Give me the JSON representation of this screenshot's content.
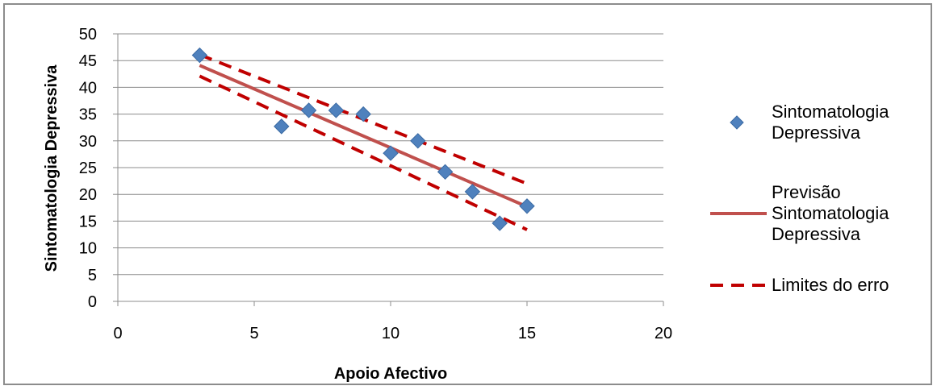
{
  "chart_data": {
    "type": "scatter",
    "title": "",
    "xlabel": "Apoio Afectivo",
    "ylabel": "Sintomatologia Depressiva",
    "xlim": [
      0,
      20
    ],
    "ylim": [
      0,
      50
    ],
    "xticks": [
      "0",
      "5",
      "10",
      "15",
      "20"
    ],
    "yticks": [
      "0",
      "5",
      "10",
      "15",
      "20",
      "25",
      "30",
      "35",
      "40",
      "45",
      "50"
    ],
    "grid": "horizontal",
    "legend_position": "right",
    "series": [
      {
        "name": "Sintomatologia Depressiva",
        "kind": "points",
        "marker": "diamond",
        "color": "#4f81bd",
        "x": [
          3,
          6,
          7,
          8,
          9,
          10,
          11,
          12,
          13,
          14,
          15
        ],
        "y": [
          46,
          32.7,
          35.7,
          35.7,
          35,
          27.7,
          30,
          24.2,
          20.5,
          14.6,
          17.8
        ]
      },
      {
        "name": "Previsão Sintomatologia Depressiva",
        "kind": "line",
        "color": "#c0504d",
        "x": [
          3,
          15
        ],
        "y": [
          44.1,
          17.7
        ]
      },
      {
        "name": "Limites do erro",
        "kind": "dashed",
        "color": "#c00000",
        "lines": [
          {
            "x": [
              3,
              15
            ],
            "y": [
              46.1,
              22.0
            ]
          },
          {
            "x": [
              3,
              15
            ],
            "y": [
              42.1,
              13.4
            ]
          }
        ]
      }
    ],
    "legend": [
      {
        "lines": [
          "Sintomatologia",
          "Depressiva"
        ]
      },
      {
        "lines": [
          "Previsão",
          "Sintomatologia",
          "Depressiva"
        ]
      },
      {
        "lines": [
          "Limites do erro"
        ]
      }
    ]
  }
}
